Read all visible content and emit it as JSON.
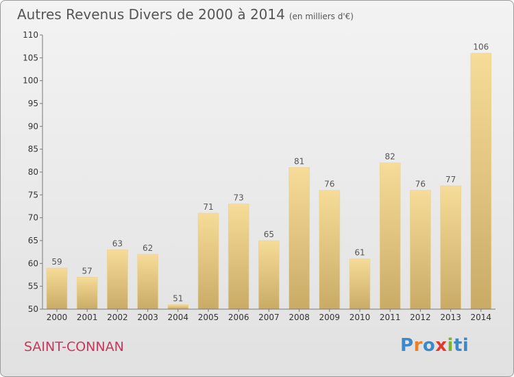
{
  "header": {
    "title": "Autres Revenus Divers de 2000 à 2014",
    "subtitle": "(en milliers d'€)"
  },
  "footer": {
    "commune": "SAINT-CONNAN",
    "logo_text": "Proxiti"
  },
  "colors": {
    "bar_light": "#f6dc98",
    "bar_dark": "#c9ab66",
    "commune_text": "#c8375b",
    "logo_letters": [
      "#3d88c8",
      "#e8822a",
      "#3d88c8",
      "#e03a2f",
      "#7bb237",
      "#3d88c8",
      "#3d88c8"
    ]
  },
  "chart_data": {
    "type": "bar",
    "categories": [
      "2000",
      "2001",
      "2002",
      "2003",
      "2004",
      "2005",
      "2006",
      "2007",
      "2008",
      "2009",
      "2010",
      "2011",
      "2012",
      "2013",
      "2014"
    ],
    "values": [
      59,
      57,
      63,
      62,
      51,
      71,
      73,
      65,
      81,
      76,
      61,
      82,
      76,
      77,
      106
    ],
    "data_labels": [
      "59",
      "57",
      "63",
      "62",
      "51",
      "71",
      "73",
      "65",
      "81",
      "76",
      "61",
      "82",
      "76",
      "77",
      "106"
    ],
    "ylim": [
      50,
      110
    ],
    "yticks": [
      50,
      55,
      60,
      65,
      70,
      75,
      80,
      85,
      90,
      95,
      100,
      105,
      110
    ],
    "ytick_labels": [
      "50",
      "55",
      "60",
      "65",
      "70",
      "75",
      "80",
      "85",
      "90",
      "95",
      "100",
      "105",
      "110"
    ],
    "title": "Autres Revenus Divers de 2000 à 2014",
    "grid": false,
    "legend": "none"
  }
}
